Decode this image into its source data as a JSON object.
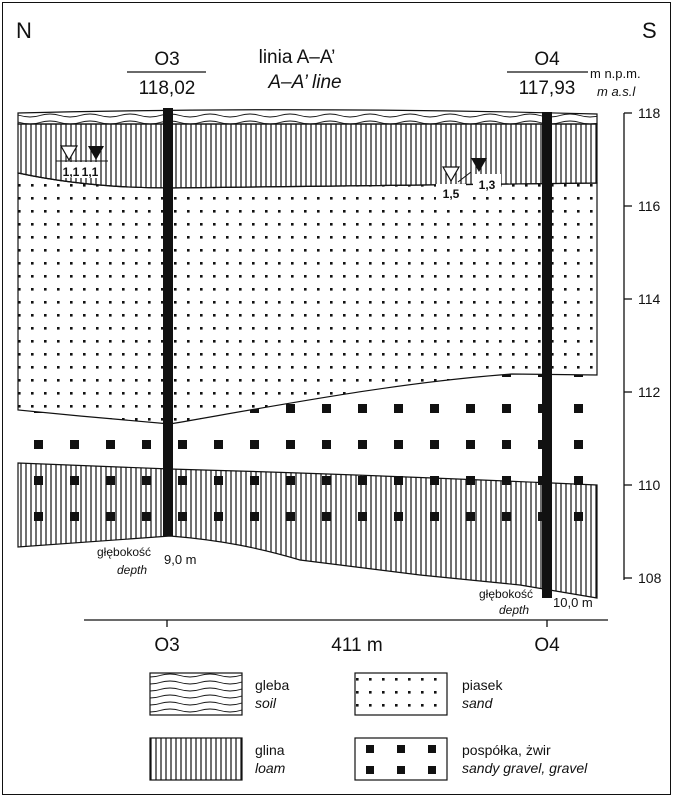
{
  "header": {
    "left_direction": "N",
    "right_direction": "S",
    "line_title": "linia A–A’",
    "line_title_en": "A–A’ line"
  },
  "wells": [
    {
      "id": "O3",
      "elevation": "118,02",
      "depth_label": "głębokość",
      "depth_label_en": "depth",
      "depth_value": "9,0 m",
      "water_left": "1,1",
      "water_right": "1,1"
    },
    {
      "id": "O4",
      "elevation": "117,93",
      "depth_label": "głębokość",
      "depth_label_en": "depth",
      "depth_value": "10,0 m",
      "water_left": "1,5",
      "water_right": "1,3"
    }
  ],
  "axis": {
    "unit": "m n.p.m.",
    "unit_en": "m a.s.l",
    "ticks": [
      "118",
      "116",
      "114",
      "112",
      "110",
      "108"
    ]
  },
  "bottom_scale": {
    "left": "O3",
    "distance": "411 m",
    "right": "O4"
  },
  "legend": [
    {
      "key": "soil",
      "label": "gleba",
      "label_en": "soil"
    },
    {
      "key": "sand",
      "label": "piasek",
      "label_en": "sand"
    },
    {
      "key": "loam",
      "label": "glina",
      "label_en": "loam"
    },
    {
      "key": "gravel",
      "label": "pospółka, żwir",
      "label_en": "sandy gravel, gravel"
    }
  ]
}
